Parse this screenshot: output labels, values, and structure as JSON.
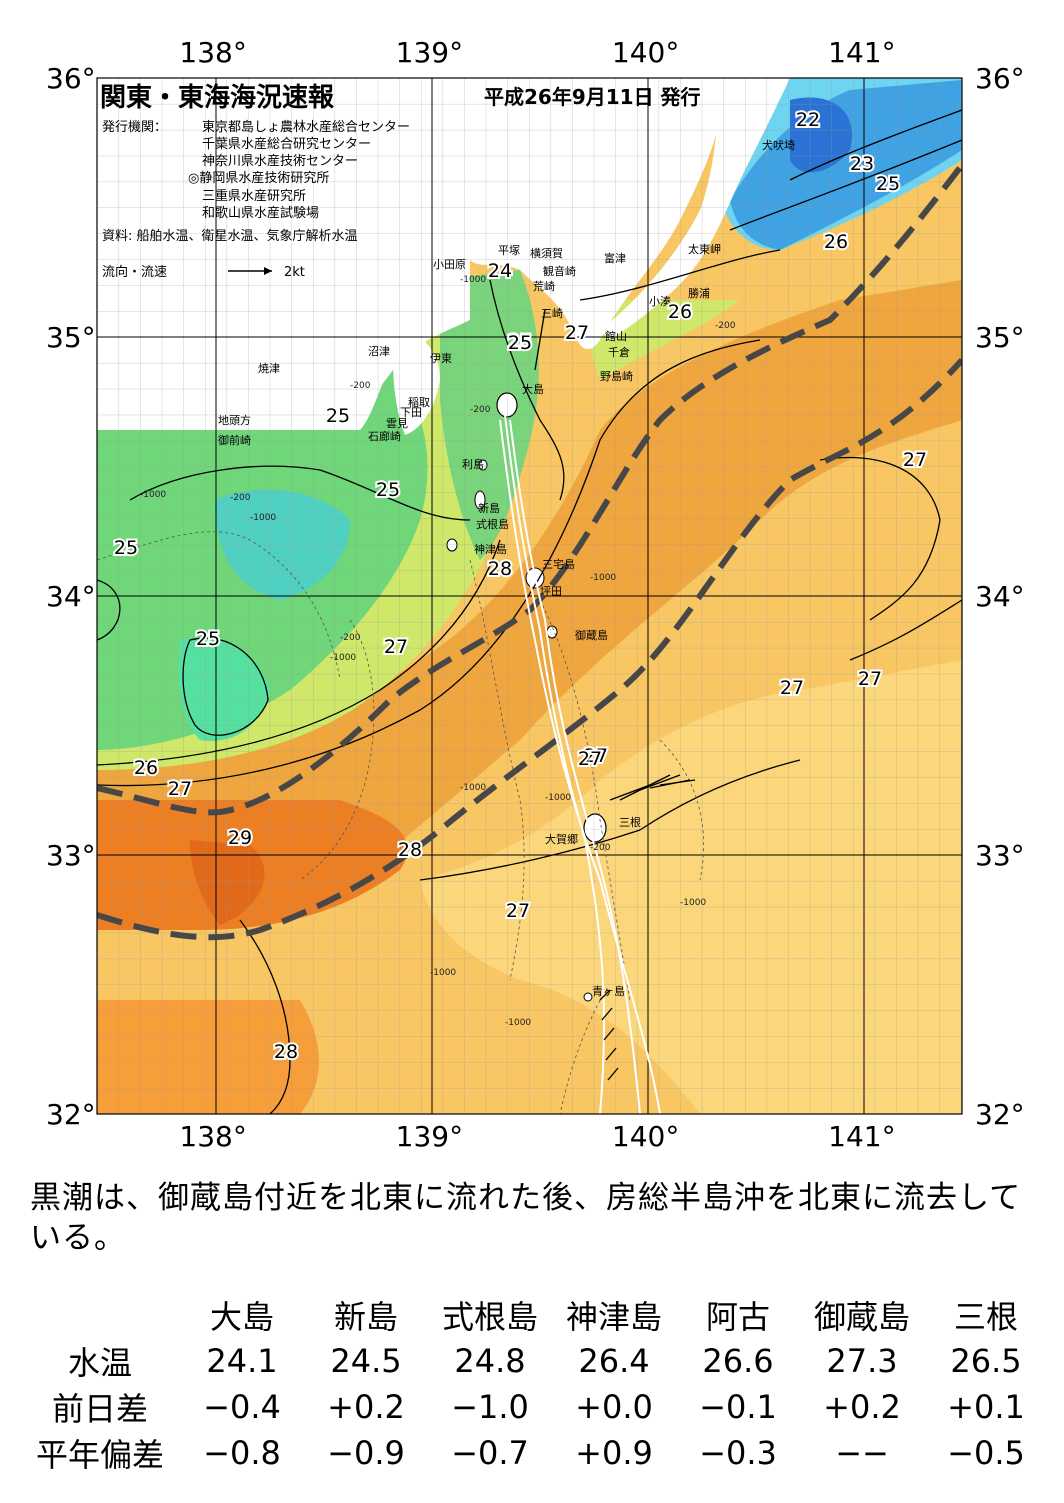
{
  "header": {
    "title": "関東・東海海況速報",
    "date": "平成26年9月11日 発行",
    "issuer_label": "発行機関：",
    "issuers": [
      "東京都島しょ農林水産総合センター",
      "千葉県水産総合研究センター",
      "神奈川県水産技術センター",
      "◎静岡県水産技術研究所",
      "三重県水産研究所",
      "和歌山県水産試験場"
    ],
    "source": "資料: 船舶水温、衛星水温、気象庁解析水温",
    "legend_label": "流向・流速",
    "legend_speed": "2kt"
  },
  "axes": {
    "lon_labels": [
      "138°",
      "139°",
      "140°",
      "141°"
    ],
    "lat_labels": [
      "36°",
      "35°",
      "34°",
      "33°",
      "32°"
    ],
    "lon_values": [
      138,
      139,
      140,
      141
    ],
    "lat_values": [
      36,
      35,
      34,
      33,
      32
    ],
    "lon_range": [
      137.5,
      141.5
    ],
    "lat_range": [
      32,
      36
    ]
  },
  "place_names": [
    "小田原",
    "平塚",
    "横須賀",
    "観音崎",
    "荒崎",
    "三崎",
    "富津",
    "館山",
    "千倉",
    "野島崎",
    "小湊",
    "勝浦",
    "太東岬",
    "犬吠埼",
    "沼津",
    "焼津",
    "伊東",
    "稲取",
    "下田",
    "雲見",
    "石廊崎",
    "地頭方",
    "御前崎",
    "大島",
    "利島",
    "新島",
    "式根島",
    "神津島",
    "三宅島",
    "坪田",
    "御蔵島",
    "三根",
    "大賀郷",
    "青ヶ島"
  ],
  "isotherm_labels": [
    "22",
    "23",
    "25",
    "24",
    "25",
    "27",
    "26",
    "26",
    "25",
    "25",
    "25",
    "25",
    "25",
    "28",
    "27",
    "27",
    "27",
    "27",
    "27",
    "26",
    "27",
    "29",
    "28",
    "27",
    "28",
    "27"
  ],
  "depth_labels": [
    "-200",
    "-1000"
  ],
  "summary": "黒潮は、御蔵島付近を北東に流れた後、房総半島沖を北東に流去している。",
  "table": {
    "columns": [
      "大島",
      "新島",
      "式根島",
      "神津島",
      "阿古",
      "御蔵島",
      "三根"
    ],
    "rows": [
      {
        "label": "水温",
        "values": [
          "24.1",
          "24.5",
          "24.8",
          "26.4",
          "26.6",
          "27.3",
          "26.5"
        ]
      },
      {
        "label": "前日差",
        "values": [
          "−0.4",
          "+0.2",
          "−1.0",
          "+0.0",
          "−0.1",
          "+0.2",
          "+0.1"
        ]
      },
      {
        "label": "平年偏差",
        "values": [
          "−0.8",
          "−0.9",
          "−0.7",
          "+0.9",
          "−0.3",
          "−−",
          "−0.5"
        ]
      }
    ]
  }
}
